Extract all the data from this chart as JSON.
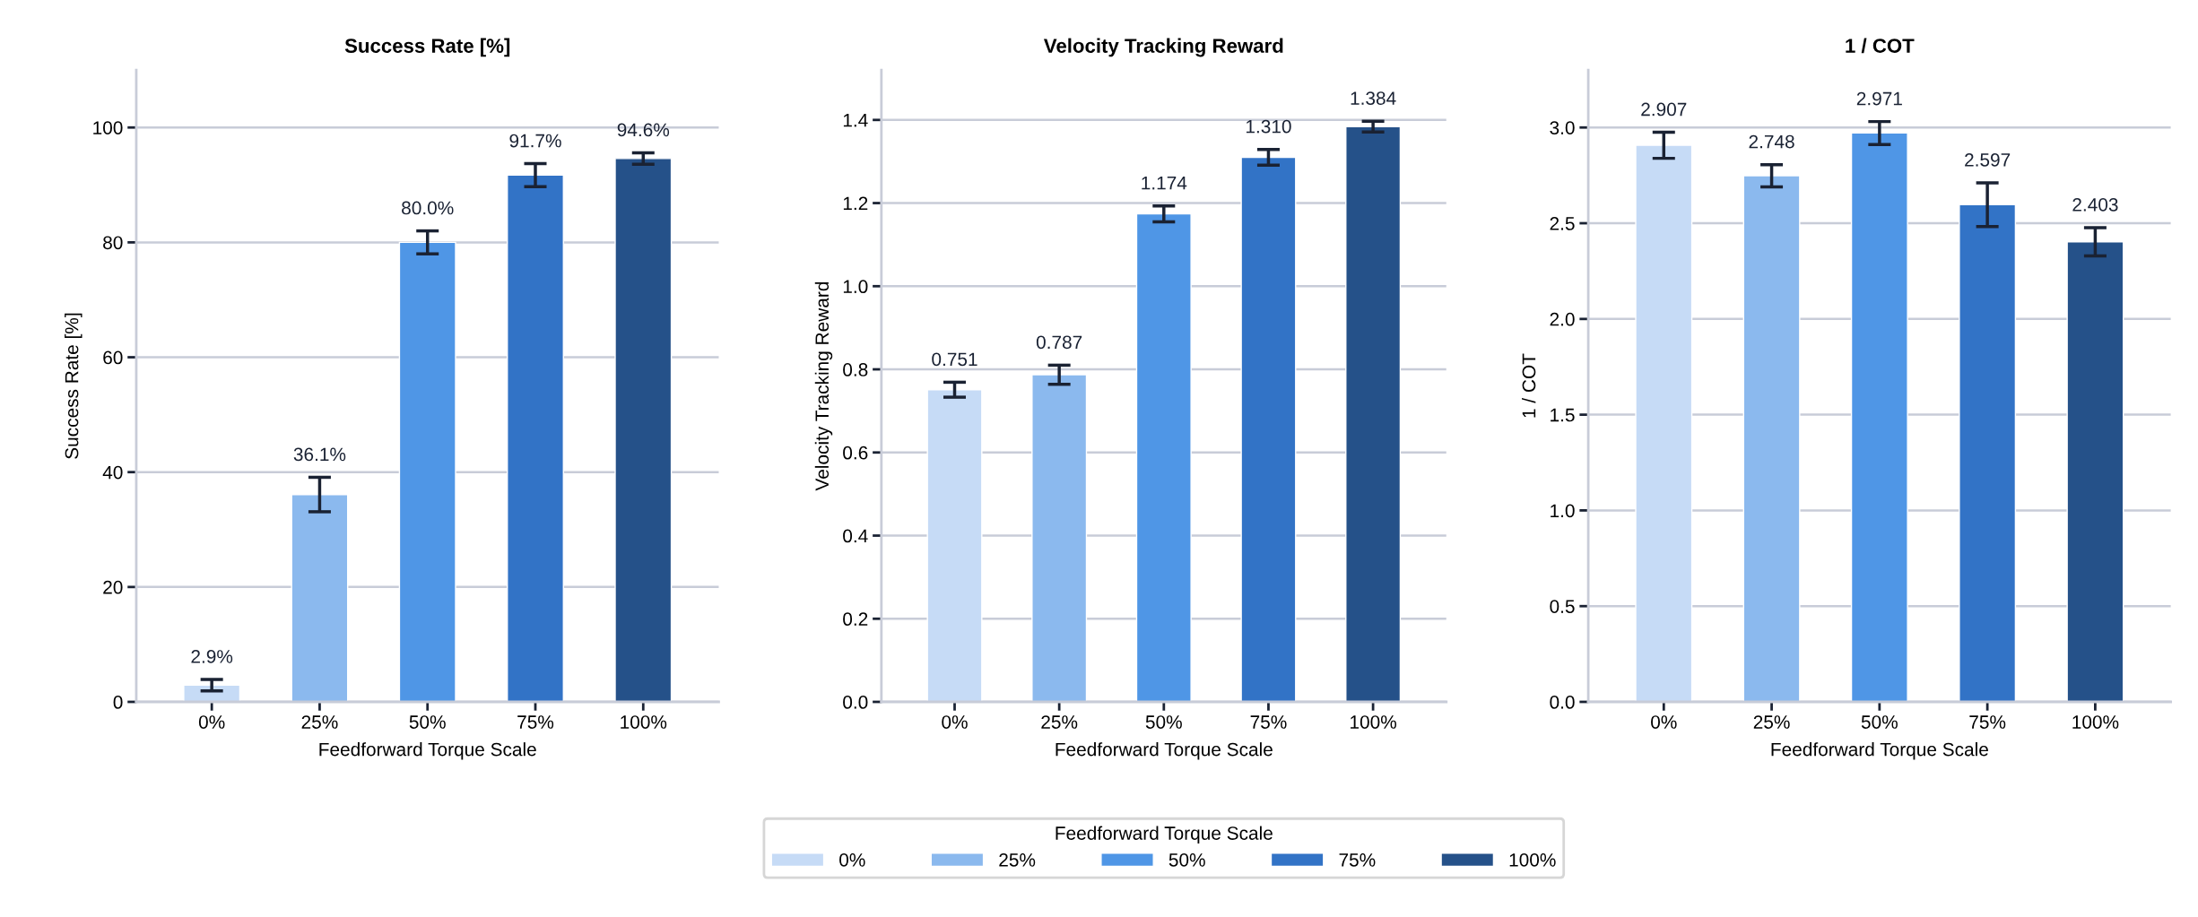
{
  "chart_data": [
    {
      "type": "bar",
      "title": "Success Rate [%]",
      "xlabel": "Feedforward Torque Scale",
      "ylabel": "Success Rate [%]",
      "categories": [
        "0%",
        "25%",
        "50%",
        "75%",
        "100%"
      ],
      "series": [
        {
          "color": "#c6dbf6",
          "values": [
            2.9,
            null,
            null,
            null,
            null
          ],
          "errors": [
            1.0,
            null,
            null,
            null,
            null
          ],
          "value_labels": [
            "2.9%",
            null,
            null,
            null,
            null
          ]
        },
        {
          "color": "#8bb9ee",
          "values": [
            null,
            36.1,
            null,
            null,
            null
          ],
          "errors": [
            null,
            3.0,
            null,
            null,
            null
          ],
          "value_labels": [
            null,
            "36.1%",
            null,
            null,
            null
          ]
        },
        {
          "color": "#4f96e6",
          "values": [
            null,
            null,
            80.0,
            null,
            null
          ],
          "errors": [
            null,
            null,
            2.0,
            null,
            null
          ],
          "value_labels": [
            null,
            null,
            "80.0%",
            null,
            null
          ]
        },
        {
          "color": "#3273c6",
          "values": [
            null,
            null,
            null,
            91.7,
            null
          ],
          "errors": [
            null,
            null,
            null,
            2.0,
            null
          ],
          "value_labels": [
            null,
            null,
            null,
            "91.7%",
            null
          ]
        },
        {
          "color": "#255189",
          "values": [
            null,
            null,
            null,
            null,
            94.6
          ],
          "errors": [
            null,
            null,
            null,
            null,
            1.0
          ],
          "value_labels": [
            null,
            null,
            null,
            null,
            "94.6%"
          ]
        }
      ],
      "ylim": [
        0,
        110
      ],
      "yticks": [
        0,
        20,
        40,
        60,
        80,
        100
      ],
      "grid": "y"
    },
    {
      "type": "bar",
      "title": "Velocity Tracking Reward",
      "xlabel": "Feedforward Torque Scale",
      "ylabel": "Velocity Tracking Reward",
      "categories": [
        "0%",
        "25%",
        "50%",
        "75%",
        "100%"
      ],
      "series": [
        {
          "name": "0%",
          "color": "#c6dbf6",
          "values": [
            0.751,
            null,
            null,
            null,
            null
          ],
          "errors": [
            0.018,
            null,
            null,
            null,
            null
          ],
          "value_labels": [
            "0.751",
            null,
            null,
            null,
            null
          ]
        },
        {
          "name": "25%",
          "color": "#8bb9ee",
          "values": [
            null,
            0.787,
            null,
            null,
            null
          ],
          "errors": [
            null,
            0.023,
            null,
            null,
            null
          ],
          "value_labels": [
            null,
            "0.787",
            null,
            null,
            null
          ]
        },
        {
          "name": "50%",
          "color": "#4f96e6",
          "values": [
            null,
            null,
            1.174,
            null,
            null
          ],
          "errors": [
            null,
            null,
            0.019,
            null,
            null
          ],
          "value_labels": [
            null,
            null,
            "1.174",
            null,
            null
          ]
        },
        {
          "name": "75%",
          "color": "#3273c6",
          "values": [
            null,
            null,
            null,
            1.31,
            null
          ],
          "errors": [
            null,
            null,
            null,
            0.019,
            null
          ],
          "value_labels": [
            null,
            null,
            null,
            "1.310",
            null
          ]
        },
        {
          "name": "100%",
          "color": "#255189",
          "values": [
            null,
            null,
            null,
            null,
            1.384
          ],
          "errors": [
            null,
            null,
            null,
            null,
            0.013
          ],
          "value_labels": [
            null,
            null,
            null,
            null,
            "1.384"
          ]
        }
      ],
      "ylim": [
        0,
        1.52
      ],
      "yticks": [
        {
          "value": 0,
          "label": "0.0"
        },
        0.2,
        0.4,
        0.6,
        0.8,
        {
          "value": 1,
          "label": "1.0"
        },
        1.2,
        1.4
      ],
      "grid": "y",
      "legend": "bottom",
      "legend_title": "Feedforward Torque Scale"
    },
    {
      "type": "bar",
      "title": "1 / COT",
      "xlabel": "Feedforward Torque Scale",
      "ylabel": "1 / COT",
      "categories": [
        "0%",
        "25%",
        "50%",
        "75%",
        "100%"
      ],
      "series": [
        {
          "color": "#c6dbf6",
          "values": [
            2.907,
            null,
            null,
            null,
            null
          ],
          "errors": [
            0.068,
            null,
            null,
            null,
            null
          ],
          "value_labels": [
            "2.907",
            null,
            null,
            null,
            null
          ]
        },
        {
          "color": "#8bb9ee",
          "values": [
            null,
            2.748,
            null,
            null,
            null
          ],
          "errors": [
            null,
            0.058,
            null,
            null,
            null
          ],
          "value_labels": [
            null,
            "2.748",
            null,
            null,
            null
          ]
        },
        {
          "color": "#4f96e6",
          "values": [
            null,
            null,
            2.971,
            null,
            null
          ],
          "errors": [
            null,
            null,
            0.06,
            null,
            null
          ],
          "value_labels": [
            null,
            null,
            "2.971",
            null,
            null
          ]
        },
        {
          "color": "#3273c6",
          "values": [
            null,
            null,
            null,
            2.597,
            null
          ],
          "errors": [
            null,
            null,
            null,
            0.114,
            null
          ],
          "value_labels": [
            null,
            null,
            null,
            "2.597",
            null
          ]
        },
        {
          "color": "#255189",
          "values": [
            null,
            null,
            null,
            null,
            2.403
          ],
          "errors": [
            null,
            null,
            null,
            null,
            0.074
          ],
          "value_labels": [
            null,
            null,
            null,
            null,
            "2.403"
          ]
        }
      ],
      "ylim": [
        0,
        3.3
      ],
      "yticks": [
        {
          "value": 0,
          "label": "0.0"
        },
        0.5,
        {
          "value": 1,
          "label": "1.0"
        },
        1.5,
        {
          "value": 2,
          "label": "2.0"
        },
        2.5,
        {
          "value": 3,
          "label": "3.0"
        }
      ],
      "grid": "y"
    }
  ]
}
